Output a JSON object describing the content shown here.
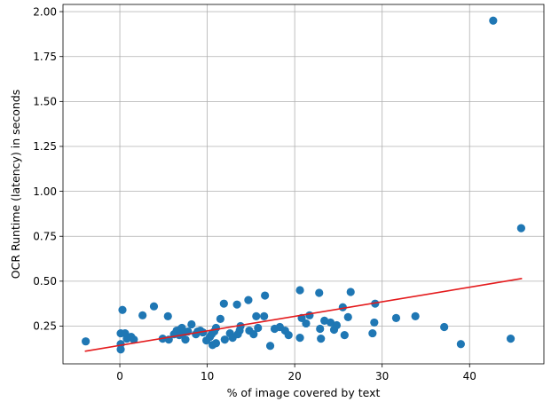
{
  "chart_data": {
    "type": "scatter",
    "xlabel": "% of image covered by text",
    "ylabel": "OCR Runtime (latency) in seconds",
    "xlim": [
      -6.5,
      48.5
    ],
    "ylim": [
      0.04,
      2.04
    ],
    "xticks": [
      0,
      10,
      20,
      30,
      40
    ],
    "yticks": [
      0.25,
      0.5,
      0.75,
      1.0,
      1.25,
      1.5,
      1.75,
      2.0
    ],
    "ytick_labels": [
      "0.25",
      "0.50",
      "0.75",
      "1.00",
      "1.25",
      "1.50",
      "1.75",
      "2.00"
    ],
    "grid": true,
    "point_color": "#1f77b4",
    "line_color": "#e41a1c",
    "series": [
      {
        "type": "scatter",
        "points": [
          [
            -3.9,
            0.165
          ],
          [
            0.1,
            0.21
          ],
          [
            0.1,
            0.15
          ],
          [
            0.1,
            0.12
          ],
          [
            0.3,
            0.34
          ],
          [
            0.6,
            0.21
          ],
          [
            0.8,
            0.18
          ],
          [
            1.3,
            0.19
          ],
          [
            1.6,
            0.175
          ],
          [
            2.6,
            0.31
          ],
          [
            3.9,
            0.36
          ],
          [
            4.9,
            0.18
          ],
          [
            5.5,
            0.305
          ],
          [
            5.6,
            0.175
          ],
          [
            6.2,
            0.205
          ],
          [
            6.5,
            0.225
          ],
          [
            6.8,
            0.2
          ],
          [
            7.0,
            0.235
          ],
          [
            7.1,
            0.24
          ],
          [
            7.3,
            0.215
          ],
          [
            7.5,
            0.175
          ],
          [
            7.8,
            0.22
          ],
          [
            8.2,
            0.26
          ],
          [
            8.7,
            0.205
          ],
          [
            8.9,
            0.22
          ],
          [
            9.2,
            0.225
          ],
          [
            9.5,
            0.215
          ],
          [
            9.9,
            0.17
          ],
          [
            10.3,
            0.19
          ],
          [
            10.5,
            0.205
          ],
          [
            10.6,
            0.145
          ],
          [
            10.8,
            0.22
          ],
          [
            11.0,
            0.155
          ],
          [
            11.0,
            0.24
          ],
          [
            11.5,
            0.29
          ],
          [
            11.9,
            0.375
          ],
          [
            12.0,
            0.175
          ],
          [
            12.6,
            0.21
          ],
          [
            12.9,
            0.185
          ],
          [
            13.4,
            0.37
          ],
          [
            13.5,
            0.205
          ],
          [
            13.7,
            0.225
          ],
          [
            13.8,
            0.25
          ],
          [
            14.7,
            0.395
          ],
          [
            14.8,
            0.225
          ],
          [
            15.3,
            0.205
          ],
          [
            15.6,
            0.305
          ],
          [
            15.8,
            0.24
          ],
          [
            16.5,
            0.305
          ],
          [
            16.6,
            0.42
          ],
          [
            17.2,
            0.14
          ],
          [
            17.7,
            0.235
          ],
          [
            18.3,
            0.245
          ],
          [
            18.9,
            0.225
          ],
          [
            19.3,
            0.2
          ],
          [
            20.6,
            0.45
          ],
          [
            20.6,
            0.185
          ],
          [
            20.8,
            0.295
          ],
          [
            21.3,
            0.265
          ],
          [
            21.7,
            0.31
          ],
          [
            22.8,
            0.435
          ],
          [
            22.9,
            0.235
          ],
          [
            23.0,
            0.18
          ],
          [
            23.4,
            0.28
          ],
          [
            24.1,
            0.27
          ],
          [
            24.5,
            0.23
          ],
          [
            24.8,
            0.255
          ],
          [
            25.5,
            0.355
          ],
          [
            25.7,
            0.2
          ],
          [
            26.1,
            0.3
          ],
          [
            26.4,
            0.44
          ],
          [
            28.9,
            0.21
          ],
          [
            29.1,
            0.27
          ],
          [
            29.2,
            0.375
          ],
          [
            31.6,
            0.295
          ],
          [
            33.8,
            0.305
          ],
          [
            37.1,
            0.245
          ],
          [
            39.0,
            0.15
          ],
          [
            42.7,
            1.95
          ],
          [
            44.7,
            0.18
          ],
          [
            45.9,
            0.795
          ]
        ]
      },
      {
        "type": "line",
        "points": [
          [
            -4.0,
            0.11
          ],
          [
            46.0,
            0.515
          ]
        ]
      }
    ]
  }
}
